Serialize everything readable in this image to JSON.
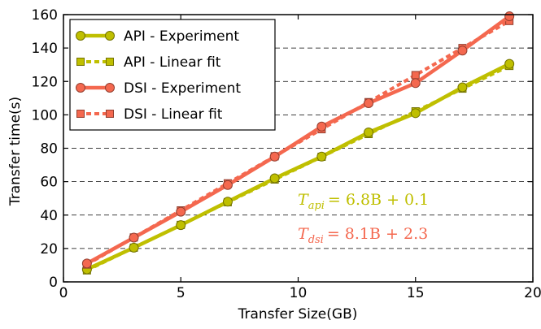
{
  "chart_data": {
    "type": "line",
    "title": "",
    "xlabel": "Transfer Size(GB)",
    "ylabel": "Transfer time(s)",
    "xlim": [
      0,
      20
    ],
    "ylim": [
      0,
      160
    ],
    "xticks": [
      0,
      5,
      10,
      15,
      20
    ],
    "yticks": [
      0,
      20,
      40,
      60,
      80,
      100,
      120,
      140,
      160
    ],
    "xtick_labels": [
      "0",
      "5",
      "10",
      "15",
      "20"
    ],
    "ytick_labels": [
      "0",
      "20",
      "40",
      "60",
      "80",
      "100",
      "120",
      "140",
      "160"
    ],
    "grid": "horizontal dashed",
    "legend_position": "top-left",
    "x": [
      1,
      3,
      5,
      7,
      9,
      11,
      13,
      15,
      17,
      19
    ],
    "series": [
      {
        "name": "API - Experiment",
        "kind": "experiment",
        "marker": "circle",
        "color": "#bfbf00",
        "values": [
          7.5,
          20.5,
          34,
          48,
          62,
          75,
          89.5,
          101,
          116.5,
          130.5
        ]
      },
      {
        "name": "API - Linear fit",
        "kind": "fit",
        "marker": "square",
        "color": "#bfbf00",
        "values": [
          6.9,
          20.5,
          34.1,
          47.7,
          61.3,
          74.9,
          88.5,
          102.1,
          115.7,
          129.3
        ]
      },
      {
        "name": "DSI - Experiment",
        "kind": "experiment",
        "marker": "circle",
        "color": "#f4684f",
        "values": [
          11,
          26.5,
          42,
          58,
          75,
          93,
          107,
          119,
          138.5,
          159
        ]
      },
      {
        "name": "DSI - Linear fit",
        "kind": "fit",
        "marker": "square",
        "color": "#f4684f",
        "values": [
          10.4,
          26.6,
          42.8,
          59,
          75.2,
          91.4,
          107.6,
          123.8,
          140,
          156.2
        ]
      }
    ],
    "annotations": [
      {
        "id": "api",
        "color": "#bfbf00",
        "var": "T",
        "sub": "api",
        "rhs": "= 6.8B + 0.1"
      },
      {
        "id": "dsi",
        "color": "#f4684f",
        "var": "T",
        "sub": "dsi",
        "rhs": "= 8.1B + 2.3"
      }
    ]
  }
}
